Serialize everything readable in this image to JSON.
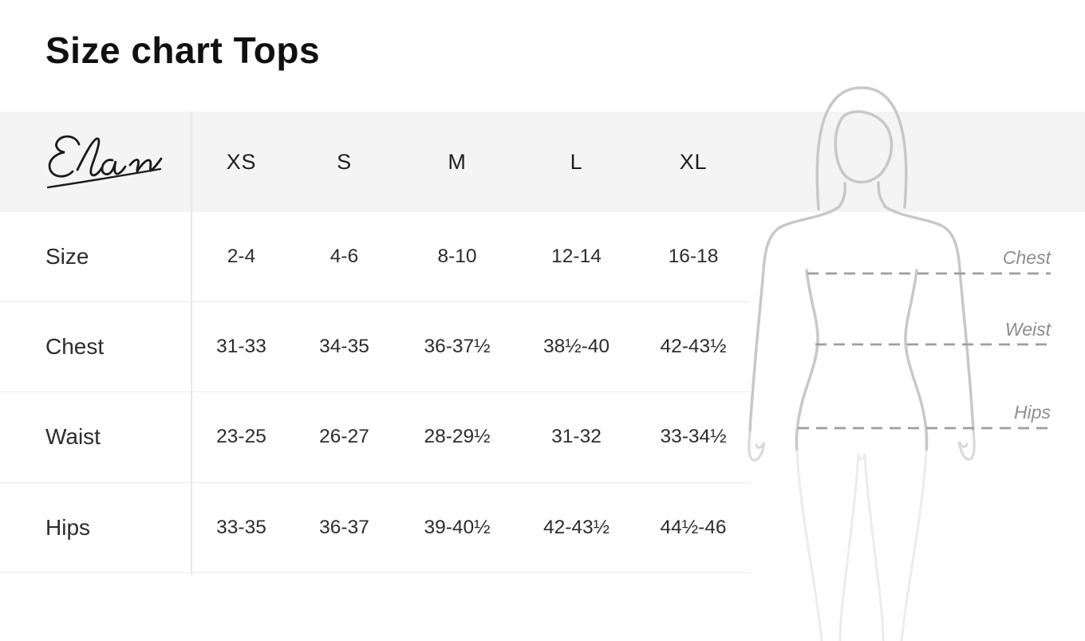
{
  "title": "Size chart Tops",
  "brand": {
    "name": "Elan"
  },
  "table": {
    "columns": [
      "XS",
      "S",
      "M",
      "L",
      "XL"
    ],
    "rows": [
      {
        "label": "Size",
        "values": [
          "2-4",
          "4-6",
          "8-10",
          "12-14",
          "16-18"
        ]
      },
      {
        "label": "Chest",
        "values": [
          "31-33",
          "34-35",
          "36-37½",
          "38½-40",
          "42-43½"
        ]
      },
      {
        "label": "Waist",
        "values": [
          "23-25",
          "26-27",
          "28-29½",
          "31-32",
          "33-34½"
        ]
      },
      {
        "label": "Hips",
        "values": [
          "33-35",
          "36-37",
          "39-40½",
          "42-43½",
          "44½-46"
        ]
      }
    ]
  },
  "figure": {
    "labels": {
      "chest": "Chest",
      "waist": "Weist",
      "hips": "Hips"
    }
  },
  "colors": {
    "header_band": "#f4f4f4",
    "row_divider": "#ececec",
    "column_divider": "#e6e6e6",
    "text": "#2c2c2c",
    "figure_outline": "#c8c8c8",
    "measure_line": "#9e9e9e",
    "figure_label": "#8d8d8d"
  }
}
